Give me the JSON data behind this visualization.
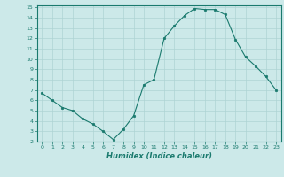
{
  "x": [
    0,
    1,
    2,
    3,
    4,
    5,
    6,
    7,
    8,
    9,
    10,
    11,
    12,
    13,
    14,
    15,
    16,
    17,
    18,
    19,
    20,
    21,
    22,
    23
  ],
  "y": [
    6.7,
    6.0,
    5.3,
    5.0,
    4.2,
    3.7,
    3.0,
    2.2,
    3.2,
    4.5,
    7.5,
    8.0,
    12.0,
    13.2,
    14.2,
    14.9,
    14.8,
    14.8,
    14.3,
    11.9,
    10.2,
    9.3,
    8.3,
    7.0
  ],
  "line_color": "#1a7a6e",
  "marker": "o",
  "marker_size": 1.8,
  "bg_color": "#cce9e9",
  "grid_color": "#aed4d4",
  "xlabel": "Humidex (Indice chaleur)",
  "xlim": [
    -0.5,
    23.5
  ],
  "ylim": [
    2,
    15.2
  ],
  "yticks": [
    2,
    3,
    4,
    5,
    6,
    7,
    8,
    9,
    10,
    11,
    12,
    13,
    14,
    15
  ],
  "xticks": [
    0,
    1,
    2,
    3,
    4,
    5,
    6,
    7,
    8,
    9,
    10,
    11,
    12,
    13,
    14,
    15,
    16,
    17,
    18,
    19,
    20,
    21,
    22,
    23
  ],
  "tick_color": "#1a7a6e",
  "spine_color": "#1a7a6e",
  "font_color": "#1a7a6e"
}
